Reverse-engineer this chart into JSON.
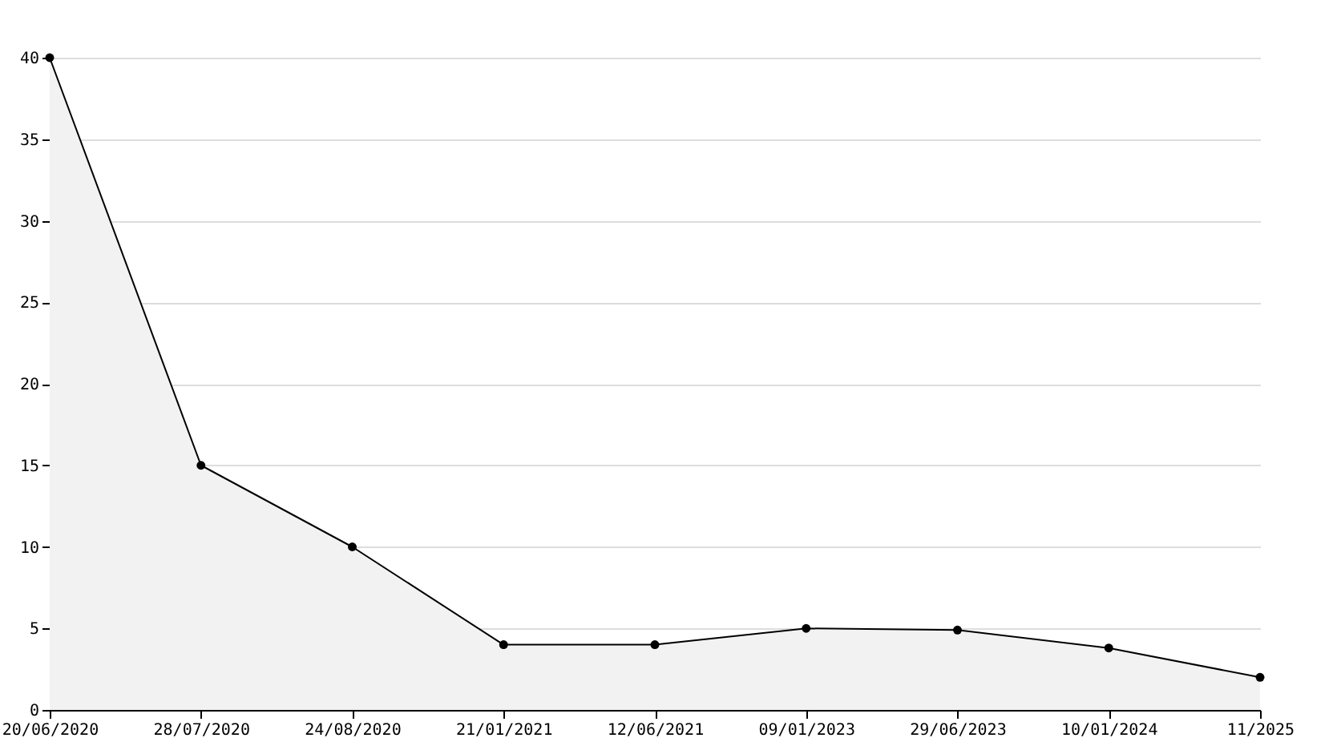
{
  "chart_data": {
    "type": "area",
    "categories": [
      "20/06/2020",
      "28/07/2020",
      "24/08/2020",
      "21/01/2021",
      "12/06/2021",
      "09/01/2023",
      "29/06/2023",
      "10/01/2024",
      "11/2025"
    ],
    "series": [
      {
        "color": "#000000",
        "values": [
          40,
          15,
          10,
          4,
          4,
          5,
          4.9,
          3.8,
          2
        ]
      }
    ],
    "ylim": [
      0,
      40
    ],
    "yticks": [
      0,
      5,
      10,
      15,
      20,
      25,
      30,
      35,
      40
    ],
    "grid": "y",
    "marker": "circle",
    "line_style": "solid"
  }
}
